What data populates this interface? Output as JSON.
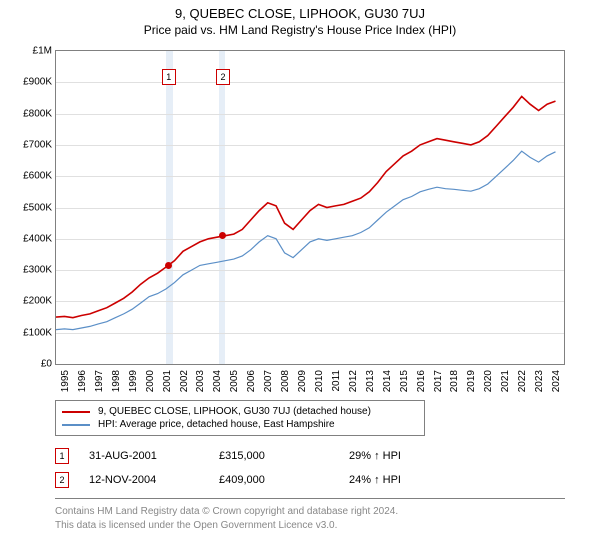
{
  "title": "9, QUEBEC CLOSE, LIPHOOK, GU30 7UJ",
  "subtitle": "Price paid vs. HM Land Registry's House Price Index (HPI)",
  "chart": {
    "type": "line",
    "background_color": "#ffffff",
    "grid_color": "#e0e0e0",
    "border_color": "#808080",
    "ylim": [
      0,
      1000000
    ],
    "y_ticks": [
      {
        "v": 0,
        "label": "£0"
      },
      {
        "v": 100000,
        "label": "£100K"
      },
      {
        "v": 200000,
        "label": "£200K"
      },
      {
        "v": 300000,
        "label": "£300K"
      },
      {
        "v": 400000,
        "label": "£400K"
      },
      {
        "v": 500000,
        "label": "£500K"
      },
      {
        "v": 600000,
        "label": "£600K"
      },
      {
        "v": 700000,
        "label": "£700K"
      },
      {
        "v": 800000,
        "label": "£800K"
      },
      {
        "v": 900000,
        "label": "£900K"
      },
      {
        "v": 1000000,
        "label": "£1M"
      }
    ],
    "xlim": [
      1995,
      2025
    ],
    "x_ticks": [
      1995,
      1996,
      1997,
      1998,
      1999,
      2000,
      2001,
      2002,
      2003,
      2004,
      2005,
      2006,
      2007,
      2008,
      2009,
      2010,
      2011,
      2012,
      2013,
      2014,
      2015,
      2016,
      2017,
      2018,
      2019,
      2020,
      2021,
      2022,
      2023,
      2024
    ],
    "highlight_bands": [
      {
        "from": 2001.5,
        "to": 2001.9,
        "color": "#e6eef7"
      },
      {
        "from": 2004.6,
        "to": 2005.0,
        "color": "#e6eef7"
      }
    ],
    "marker_labels": [
      {
        "x": 2001.66,
        "label": "1"
      },
      {
        "x": 2004.86,
        "label": "2"
      }
    ],
    "sale_points": [
      {
        "x": 2001.66,
        "y": 315000,
        "color": "#cc0000"
      },
      {
        "x": 2004.86,
        "y": 409000,
        "color": "#cc0000"
      }
    ],
    "series": [
      {
        "name": "property",
        "color": "#cc0000",
        "width": 1.6,
        "label": "9, QUEBEC CLOSE, LIPHOOK, GU30 7UJ (detached house)",
        "points": [
          [
            1995,
            150000
          ],
          [
            1995.5,
            152000
          ],
          [
            1996,
            148000
          ],
          [
            1996.5,
            155000
          ],
          [
            1997,
            160000
          ],
          [
            1997.5,
            170000
          ],
          [
            1998,
            180000
          ],
          [
            1998.5,
            195000
          ],
          [
            1999,
            210000
          ],
          [
            1999.5,
            230000
          ],
          [
            2000,
            255000
          ],
          [
            2000.5,
            275000
          ],
          [
            2001,
            290000
          ],
          [
            2001.5,
            310000
          ],
          [
            2002,
            330000
          ],
          [
            2002.5,
            360000
          ],
          [
            2003,
            375000
          ],
          [
            2003.5,
            390000
          ],
          [
            2004,
            400000
          ],
          [
            2004.5,
            405000
          ],
          [
            2005,
            410000
          ],
          [
            2005.5,
            415000
          ],
          [
            2006,
            430000
          ],
          [
            2006.5,
            460000
          ],
          [
            2007,
            490000
          ],
          [
            2007.5,
            515000
          ],
          [
            2008,
            505000
          ],
          [
            2008.5,
            450000
          ],
          [
            2009,
            430000
          ],
          [
            2009.5,
            460000
          ],
          [
            2010,
            490000
          ],
          [
            2010.5,
            510000
          ],
          [
            2011,
            500000
          ],
          [
            2011.5,
            505000
          ],
          [
            2012,
            510000
          ],
          [
            2012.5,
            520000
          ],
          [
            2013,
            530000
          ],
          [
            2013.5,
            550000
          ],
          [
            2014,
            580000
          ],
          [
            2014.5,
            615000
          ],
          [
            2015,
            640000
          ],
          [
            2015.5,
            665000
          ],
          [
            2016,
            680000
          ],
          [
            2016.5,
            700000
          ],
          [
            2017,
            710000
          ],
          [
            2017.5,
            720000
          ],
          [
            2018,
            715000
          ],
          [
            2018.5,
            710000
          ],
          [
            2019,
            705000
          ],
          [
            2019.5,
            700000
          ],
          [
            2020,
            710000
          ],
          [
            2020.5,
            730000
          ],
          [
            2021,
            760000
          ],
          [
            2021.5,
            790000
          ],
          [
            2022,
            820000
          ],
          [
            2022.5,
            855000
          ],
          [
            2023,
            830000
          ],
          [
            2023.5,
            810000
          ],
          [
            2024,
            830000
          ],
          [
            2024.5,
            840000
          ]
        ]
      },
      {
        "name": "hpi",
        "color": "#5b8fc7",
        "width": 1.2,
        "label": "HPI: Average price, detached house, East Hampshire",
        "points": [
          [
            1995,
            110000
          ],
          [
            1995.5,
            112000
          ],
          [
            1996,
            110000
          ],
          [
            1996.5,
            115000
          ],
          [
            1997,
            120000
          ],
          [
            1997.5,
            128000
          ],
          [
            1998,
            135000
          ],
          [
            1998.5,
            148000
          ],
          [
            1999,
            160000
          ],
          [
            1999.5,
            175000
          ],
          [
            2000,
            195000
          ],
          [
            2000.5,
            215000
          ],
          [
            2001,
            225000
          ],
          [
            2001.5,
            240000
          ],
          [
            2002,
            260000
          ],
          [
            2002.5,
            285000
          ],
          [
            2003,
            300000
          ],
          [
            2003.5,
            315000
          ],
          [
            2004,
            320000
          ],
          [
            2004.5,
            325000
          ],
          [
            2005,
            330000
          ],
          [
            2005.5,
            335000
          ],
          [
            2006,
            345000
          ],
          [
            2006.5,
            365000
          ],
          [
            2007,
            390000
          ],
          [
            2007.5,
            410000
          ],
          [
            2008,
            400000
          ],
          [
            2008.5,
            355000
          ],
          [
            2009,
            340000
          ],
          [
            2009.5,
            365000
          ],
          [
            2010,
            390000
          ],
          [
            2010.5,
            400000
          ],
          [
            2011,
            395000
          ],
          [
            2011.5,
            400000
          ],
          [
            2012,
            405000
          ],
          [
            2012.5,
            410000
          ],
          [
            2013,
            420000
          ],
          [
            2013.5,
            435000
          ],
          [
            2014,
            460000
          ],
          [
            2014.5,
            485000
          ],
          [
            2015,
            505000
          ],
          [
            2015.5,
            525000
          ],
          [
            2016,
            535000
          ],
          [
            2016.5,
            550000
          ],
          [
            2017,
            558000
          ],
          [
            2017.5,
            565000
          ],
          [
            2018,
            560000
          ],
          [
            2018.5,
            558000
          ],
          [
            2019,
            555000
          ],
          [
            2019.5,
            552000
          ],
          [
            2020,
            560000
          ],
          [
            2020.5,
            575000
          ],
          [
            2021,
            600000
          ],
          [
            2021.5,
            625000
          ],
          [
            2022,
            650000
          ],
          [
            2022.5,
            680000
          ],
          [
            2023,
            660000
          ],
          [
            2023.5,
            645000
          ],
          [
            2024,
            665000
          ],
          [
            2024.5,
            678000
          ]
        ]
      }
    ]
  },
  "legend": {
    "items": [
      {
        "color": "#cc0000",
        "label": "9, QUEBEC CLOSE, LIPHOOK, GU30 7UJ (detached house)"
      },
      {
        "color": "#5b8fc7",
        "label": "HPI: Average price, detached house, East Hampshire"
      }
    ]
  },
  "sales": [
    {
      "marker": "1",
      "date": "31-AUG-2001",
      "price": "£315,000",
      "delta": "29% ↑ HPI"
    },
    {
      "marker": "2",
      "date": "12-NOV-2004",
      "price": "£409,000",
      "delta": "24% ↑ HPI"
    }
  ],
  "footer": {
    "line1": "Contains HM Land Registry data © Crown copyright and database right 2024.",
    "line2": "This data is licensed under the Open Government Licence v3.0."
  }
}
